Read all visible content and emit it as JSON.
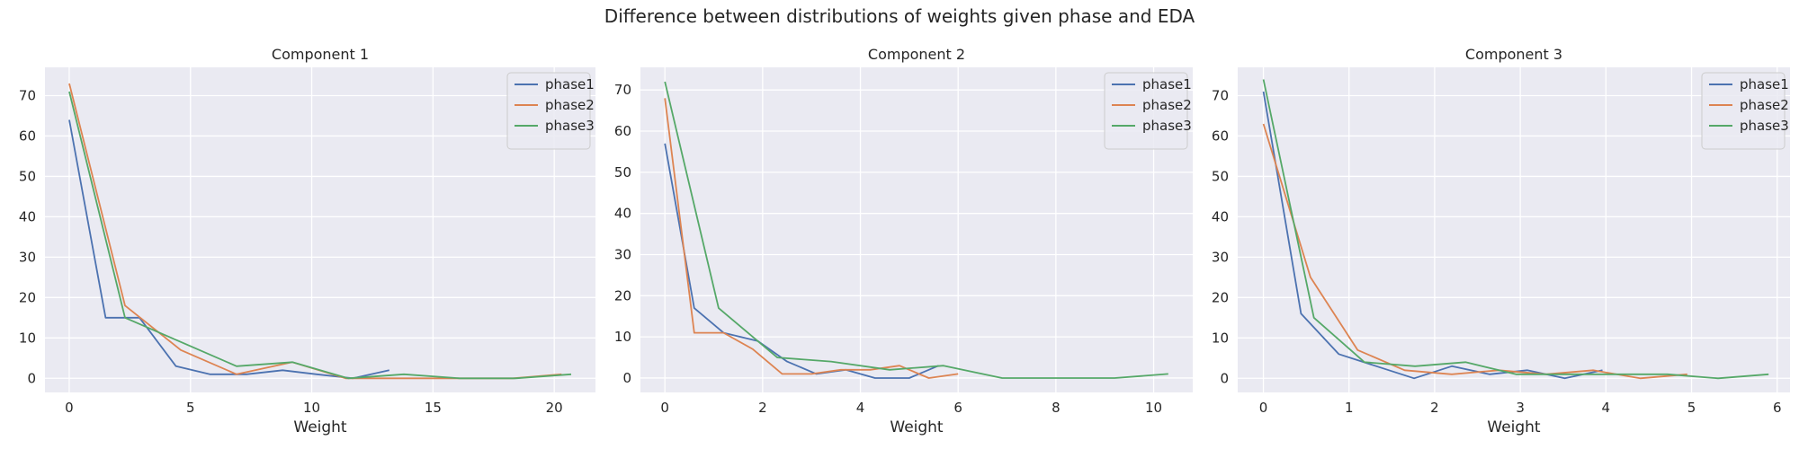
{
  "figure": {
    "title": "Difference between distributions of weights given phase and EDA"
  },
  "colors": {
    "background": "#eaeaf2",
    "grid": "#ffffff",
    "series": [
      "#4c72b0",
      "#dd8452",
      "#55a868"
    ]
  },
  "chart_data": [
    {
      "type": "line",
      "title": "Component 1",
      "xlabel": "Weight",
      "ylabel": "",
      "xlim": [
        -1.0,
        21.7
      ],
      "ylim": [
        -3.5,
        77
      ],
      "xticks": [
        0,
        5,
        10,
        15,
        20
      ],
      "yticks": [
        0,
        10,
        20,
        30,
        40,
        50,
        60,
        70
      ],
      "grid": true,
      "legend_position": "top-right",
      "series": [
        {
          "name": "phase1",
          "x": [
            0,
            1.5,
            2.9,
            4.4,
            5.8,
            7.3,
            8.8,
            10.2,
            11.7,
            13.2
          ],
          "y": [
            64,
            15,
            15,
            3,
            1,
            1,
            2,
            1,
            0,
            2
          ]
        },
        {
          "name": "phase2",
          "x": [
            0,
            2.3,
            4.6,
            6.9,
            9.2,
            11.4,
            13.7,
            16.0,
            18.3,
            20.3
          ],
          "y": [
            73,
            18,
            7,
            1,
            4,
            0,
            0,
            0,
            0,
            1
          ]
        },
        {
          "name": "phase3",
          "x": [
            0,
            2.3,
            4.6,
            6.9,
            9.2,
            11.5,
            13.8,
            16.1,
            18.4,
            20.7
          ],
          "y": [
            71,
            15,
            9,
            3,
            4,
            0,
            1,
            0,
            0,
            1
          ]
        }
      ]
    },
    {
      "type": "line",
      "title": "Component 2",
      "xlabel": "Weight",
      "ylabel": "",
      "xlim": [
        -0.5,
        10.8
      ],
      "ylim": [
        -3.5,
        75.5
      ],
      "xticks": [
        0,
        2,
        4,
        6,
        8,
        10
      ],
      "yticks": [
        0,
        10,
        20,
        30,
        40,
        50,
        60,
        70
      ],
      "grid": true,
      "legend_position": "top-right",
      "series": [
        {
          "name": "phase1",
          "x": [
            0,
            0.6,
            1.2,
            1.9,
            2.5,
            3.1,
            3.7,
            4.3,
            5.0,
            5.6
          ],
          "y": [
            57,
            17,
            11,
            9,
            4,
            1,
            2,
            0,
            0,
            3
          ]
        },
        {
          "name": "phase2",
          "x": [
            0,
            0.6,
            1.2,
            1.8,
            2.4,
            3.0,
            3.6,
            4.2,
            4.8,
            5.4,
            6.0
          ],
          "y": [
            68,
            11,
            11,
            7,
            1,
            1,
            2,
            2,
            3,
            0,
            1
          ]
        },
        {
          "name": "phase3",
          "x": [
            0,
            1.1,
            2.3,
            3.4,
            4.6,
            5.7,
            6.9,
            8.0,
            9.2,
            10.3
          ],
          "y": [
            72,
            17,
            5,
            4,
            2,
            3,
            0,
            0,
            0,
            1
          ]
        }
      ]
    },
    {
      "type": "line",
      "title": "Component 3",
      "xlabel": "Weight",
      "ylabel": "",
      "xlim": [
        -0.3,
        6.15
      ],
      "ylim": [
        -3.5,
        77
      ],
      "xticks": [
        0,
        1,
        2,
        3,
        4,
        5,
        6
      ],
      "yticks": [
        0,
        10,
        20,
        30,
        40,
        50,
        60,
        70
      ],
      "grid": true,
      "legend_position": "top-right",
      "series": [
        {
          "name": "phase1",
          "x": [
            0,
            0.44,
            0.88,
            1.32,
            1.76,
            2.2,
            2.64,
            3.08,
            3.52,
            3.96
          ],
          "y": [
            71,
            16,
            6,
            3,
            0,
            3,
            1,
            2,
            0,
            2
          ]
        },
        {
          "name": "phase2",
          "x": [
            0,
            0.55,
            1.1,
            1.65,
            2.2,
            2.75,
            3.3,
            3.85,
            4.4,
            4.95
          ],
          "y": [
            63,
            25,
            7,
            2,
            1,
            2,
            1,
            2,
            0,
            1
          ]
        },
        {
          "name": "phase3",
          "x": [
            0,
            0.59,
            1.18,
            1.77,
            2.36,
            2.95,
            3.54,
            4.13,
            4.72,
            5.31,
            5.9
          ],
          "y": [
            74,
            15,
            4,
            3,
            4,
            1,
            1,
            1,
            1,
            0,
            1
          ]
        }
      ]
    }
  ]
}
